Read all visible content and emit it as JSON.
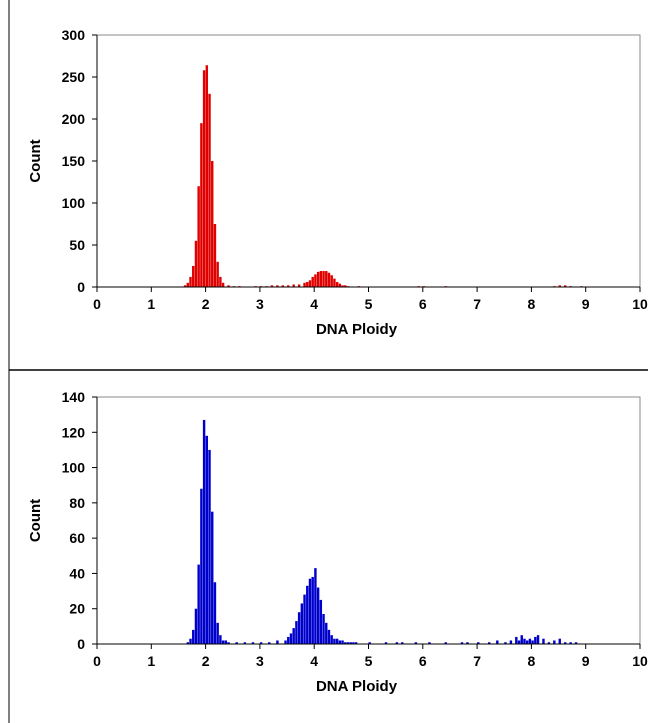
{
  "chart_data": [
    {
      "type": "bar",
      "xlabel": "DNA Ploidy",
      "ylabel": "Count",
      "xlim": [
        0,
        10
      ],
      "ylim": [
        0,
        300
      ],
      "x_ticks": [
        "0",
        "1",
        "2",
        "3",
        "4",
        "5",
        "6",
        "7",
        "8",
        "9",
        "10"
      ],
      "y_ticks": [
        "0",
        "50",
        "100",
        "150",
        "200",
        "250",
        "300"
      ],
      "grid": false,
      "legend": "none",
      "color": "#e00000",
      "bin_width": 0.05,
      "x": [
        1.6,
        1.65,
        1.7,
        1.75,
        1.8,
        1.85,
        1.9,
        1.95,
        2.0,
        2.05,
        2.1,
        2.15,
        2.2,
        2.25,
        2.3,
        2.4,
        2.5,
        2.6,
        2.9,
        3.0,
        3.1,
        3.2,
        3.3,
        3.4,
        3.5,
        3.6,
        3.7,
        3.8,
        3.85,
        3.9,
        3.95,
        4.0,
        4.05,
        4.1,
        4.15,
        4.2,
        4.25,
        4.3,
        4.35,
        4.4,
        4.45,
        4.5,
        4.55,
        4.6,
        4.8,
        5.9,
        6.0,
        6.4,
        8.4,
        8.5,
        8.6,
        8.7,
        8.9
      ],
      "values": [
        2,
        5,
        12,
        25,
        55,
        120,
        195,
        258,
        264,
        230,
        150,
        75,
        30,
        12,
        5,
        2,
        1,
        1,
        1,
        1,
        1,
        2,
        2,
        2,
        2,
        3,
        3,
        5,
        6,
        8,
        12,
        15,
        18,
        19,
        19,
        19,
        17,
        14,
        10,
        6,
        4,
        2,
        2,
        1,
        1,
        1,
        1,
        1,
        1,
        2,
        2,
        1,
        1
      ]
    },
    {
      "type": "bar",
      "xlabel": "DNA Ploidy",
      "ylabel": "Count",
      "xlim": [
        0,
        10
      ],
      "ylim": [
        0,
        140
      ],
      "x_ticks": [
        "0",
        "1",
        "2",
        "3",
        "4",
        "5",
        "6",
        "7",
        "8",
        "9",
        "10"
      ],
      "y_ticks": [
        "0",
        "20",
        "40",
        "60",
        "80",
        "100",
        "120",
        "140"
      ],
      "grid": false,
      "legend": "none",
      "color": "#0000cc",
      "bin_width": 0.05,
      "x": [
        1.65,
        1.7,
        1.75,
        1.8,
        1.85,
        1.9,
        1.95,
        2.0,
        2.05,
        2.1,
        2.15,
        2.2,
        2.25,
        2.3,
        2.35,
        2.4,
        2.55,
        2.7,
        2.85,
        3.0,
        3.15,
        3.3,
        3.45,
        3.5,
        3.55,
        3.6,
        3.65,
        3.7,
        3.75,
        3.8,
        3.85,
        3.9,
        3.95,
        4.0,
        4.05,
        4.1,
        4.15,
        4.2,
        4.25,
        4.3,
        4.35,
        4.4,
        4.45,
        4.5,
        4.55,
        4.6,
        4.65,
        4.7,
        4.75,
        5.0,
        5.3,
        5.5,
        5.6,
        5.85,
        6.1,
        6.4,
        6.7,
        6.8,
        7.0,
        7.2,
        7.35,
        7.5,
        7.6,
        7.7,
        7.75,
        7.8,
        7.85,
        7.9,
        7.95,
        8.0,
        8.05,
        8.1,
        8.2,
        8.3,
        8.4,
        8.5,
        8.6,
        8.7,
        8.8
      ],
      "values": [
        1,
        3,
        8,
        20,
        45,
        88,
        127,
        118,
        110,
        75,
        35,
        12,
        5,
        2,
        2,
        1,
        1,
        1,
        1,
        1,
        1,
        2,
        2,
        4,
        6,
        9,
        13,
        18,
        23,
        28,
        33,
        37,
        38,
        43,
        32,
        25,
        17,
        12,
        8,
        5,
        3,
        3,
        2,
        2,
        1,
        1,
        1,
        1,
        1,
        1,
        1,
        1,
        1,
        1,
        1,
        1,
        1,
        1,
        1,
        1,
        2,
        1,
        2,
        4,
        2,
        5,
        3,
        2,
        3,
        2,
        4,
        5,
        3,
        1,
        2,
        3,
        1,
        1,
        1
      ]
    }
  ]
}
